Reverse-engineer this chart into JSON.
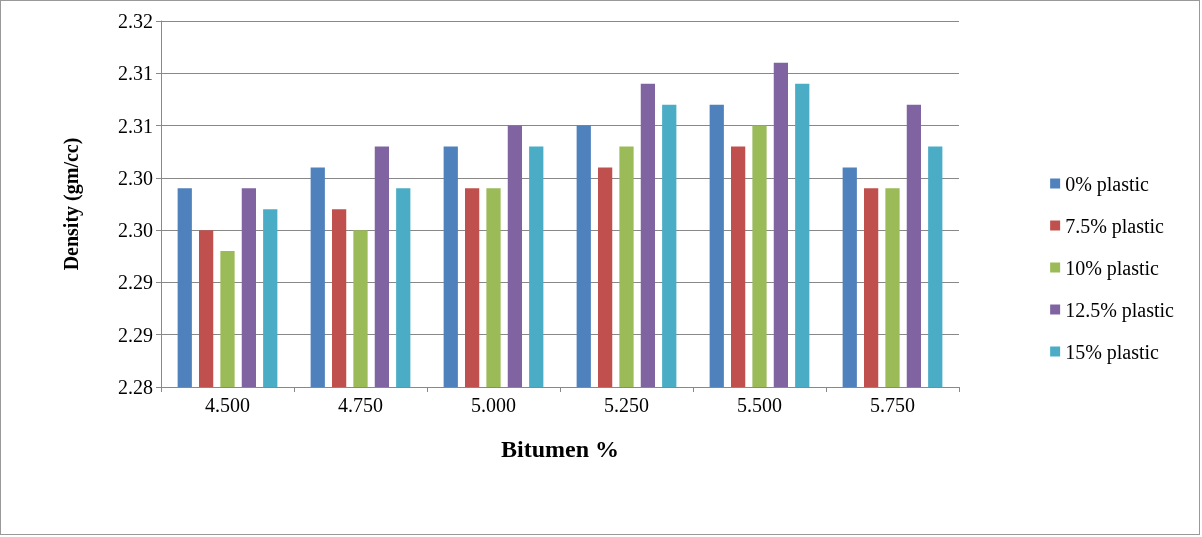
{
  "chart_data": {
    "type": "bar",
    "xlabel": "Bitumen %",
    "ylabel": "Density (gm/cc)",
    "categories": [
      "4.500",
      "4.750",
      "5.000",
      "5.250",
      "5.500",
      "5.750"
    ],
    "series": [
      {
        "name": "0% plastic",
        "color": "#4f81bd",
        "values": [
          2.299,
          2.301,
          2.303,
          2.305,
          2.307,
          2.301
        ]
      },
      {
        "name": "7.5% plastic",
        "color": "#c0504d",
        "values": [
          2.295,
          2.297,
          2.299,
          2.301,
          2.303,
          2.299
        ]
      },
      {
        "name": "10% plastic",
        "color": "#9bbb59",
        "values": [
          2.293,
          2.295,
          2.299,
          2.303,
          2.305,
          2.299
        ]
      },
      {
        "name": "12.5% plastic",
        "color": "#8064a2",
        "values": [
          2.299,
          2.303,
          2.305,
          2.309,
          2.311,
          2.307
        ]
      },
      {
        "name": "15% plastic",
        "color": "#4bacc6",
        "values": [
          2.297,
          2.299,
          2.303,
          2.307,
          2.309,
          2.303
        ]
      }
    ],
    "ylim": [
      2.28,
      2.315
    ],
    "yticks": [
      {
        "value": 2.28,
        "label": "2.28"
      },
      {
        "value": 2.285,
        "label": "2.29"
      },
      {
        "value": 2.29,
        "label": "2.29"
      },
      {
        "value": 2.295,
        "label": "2.30"
      },
      {
        "value": 2.3,
        "label": "2.30"
      },
      {
        "value": 2.305,
        "label": "2.31"
      },
      {
        "value": 2.31,
        "label": "2.31"
      },
      {
        "value": 2.315,
        "label": "2.32"
      }
    ],
    "grid": "y",
    "legend": "right"
  }
}
